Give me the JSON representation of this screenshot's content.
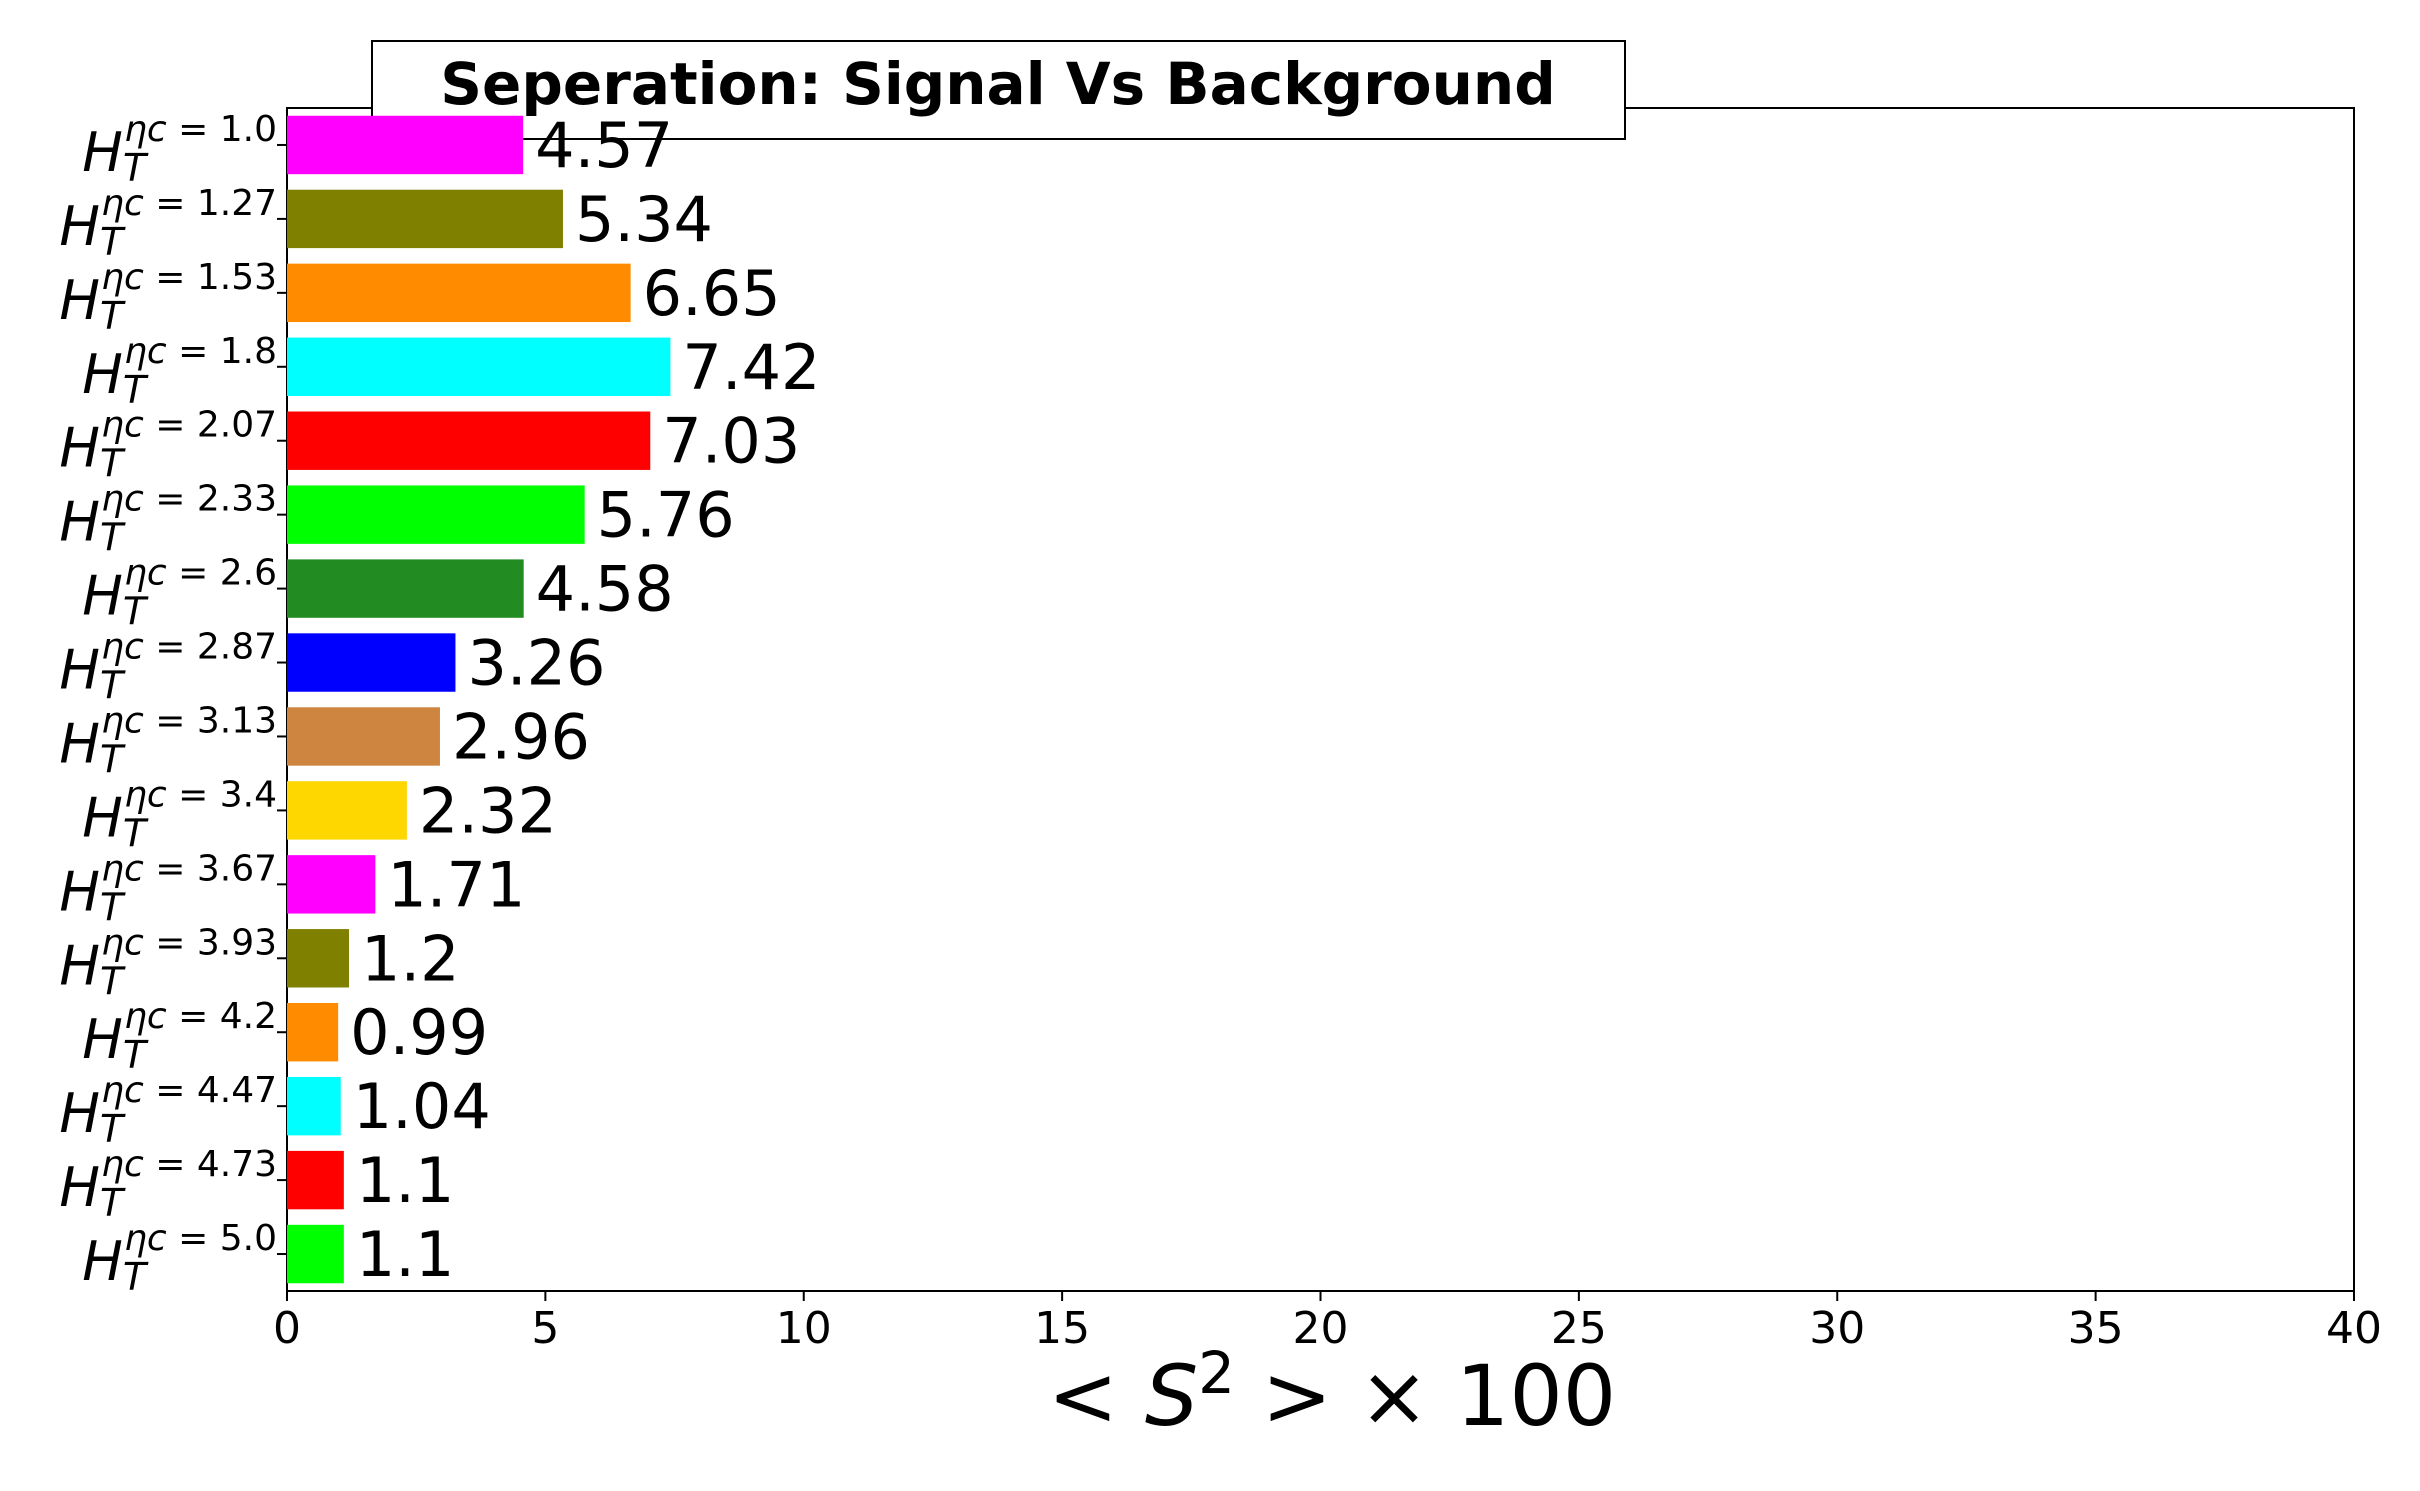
{
  "chart_data": {
    "type": "barh",
    "title": "Seperation: Signal Vs Background",
    "category_label": {
      "base": "H",
      "sub": "T",
      "sup_prefix": "ηc = "
    },
    "categories": [
      "1.0",
      "1.27",
      "1.53",
      "1.8",
      "2.07",
      "2.33",
      "2.6",
      "2.87",
      "3.13",
      "3.4",
      "3.67",
      "3.93",
      "4.2",
      "4.47",
      "4.73",
      "5.0"
    ],
    "values": [
      4.57,
      5.34,
      6.65,
      7.42,
      7.03,
      5.76,
      4.58,
      3.26,
      2.96,
      2.32,
      1.71,
      1.2,
      0.99,
      1.04,
      1.1,
      1.1
    ],
    "colors": [
      "#ff00ff",
      "#808000",
      "#ff8c00",
      "#00ffff",
      "#ff0000",
      "#00ff00",
      "#228b22",
      "#0000ff",
      "#cd853f",
      "#ffd700",
      "#ff00ff",
      "#808000",
      "#ff8c00",
      "#00ffff",
      "#ff0000",
      "#00ff00"
    ],
    "xlabel": {
      "before": "< S",
      "sup": "2",
      "after": " > × 100"
    },
    "xlim": [
      0,
      40
    ],
    "xticks": [
      0,
      5,
      10,
      15,
      20,
      25,
      30,
      35,
      40
    ]
  }
}
